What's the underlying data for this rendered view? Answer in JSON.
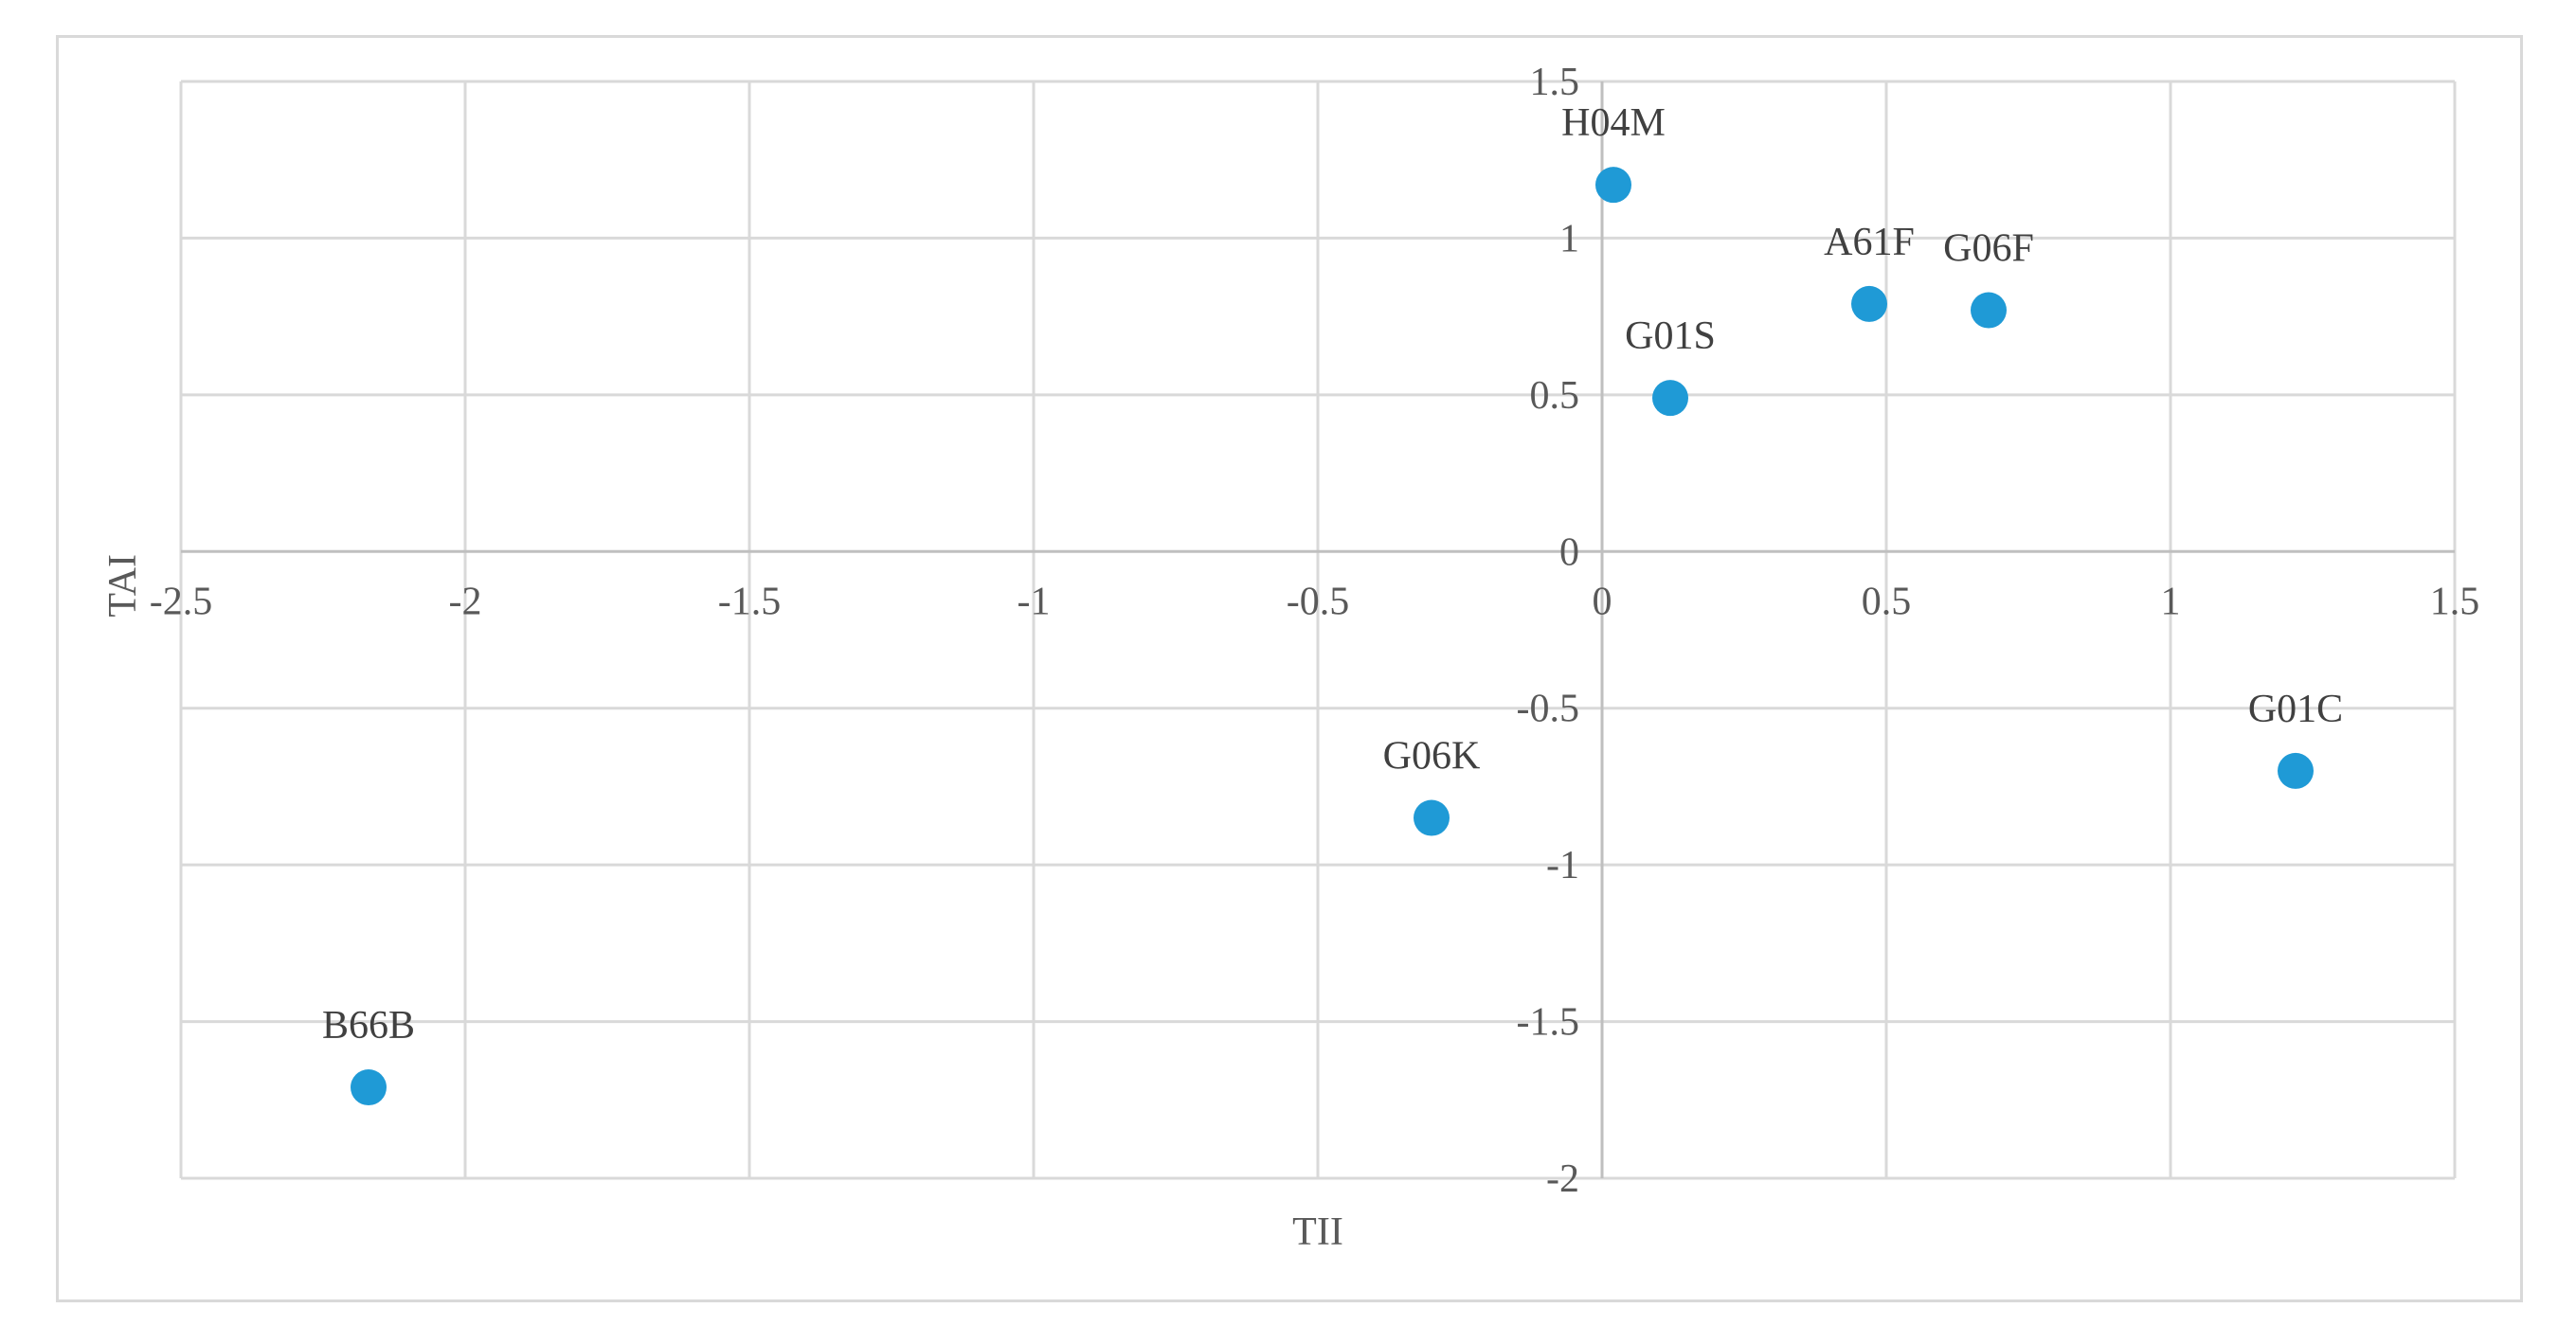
{
  "chart_data": {
    "type": "scatter",
    "title": "",
    "xlabel": "TII",
    "ylabel": "TAI",
    "xlim": [
      -2.5,
      1.5
    ],
    "ylim": [
      -2,
      1.5
    ],
    "x_ticks": [
      -2.5,
      -2,
      -1.5,
      -1,
      -0.5,
      0,
      0.5,
      1,
      1.5
    ],
    "y_ticks": [
      -2,
      -1.5,
      -1,
      -0.5,
      0,
      0.5,
      1,
      1.5
    ],
    "x_tick_labels": [
      "-2.5",
      "-2",
      "-1.5",
      "-1",
      "-0.5",
      "0",
      "0.5",
      "1",
      "1.5"
    ],
    "y_tick_labels": [
      "-2",
      "-1.5",
      "-1",
      "-0.5",
      "0",
      "0.5",
      "1",
      "1.5"
    ],
    "grid": true,
    "marker_color": "#1f9ad6",
    "grid_color": "#d9d9d9",
    "axis_color": "#bfbfbf",
    "points": [
      {
        "label": "H04M",
        "x": 0.02,
        "y": 1.17
      },
      {
        "label": "A61F",
        "x": 0.47,
        "y": 0.79
      },
      {
        "label": "G06F",
        "x": 0.68,
        "y": 0.77
      },
      {
        "label": "G01S",
        "x": 0.12,
        "y": 0.49
      },
      {
        "label": "G01C",
        "x": 1.22,
        "y": -0.7
      },
      {
        "label": "G06K",
        "x": -0.3,
        "y": -0.85
      },
      {
        "label": "B66B",
        "x": -2.17,
        "y": -1.71
      }
    ]
  }
}
